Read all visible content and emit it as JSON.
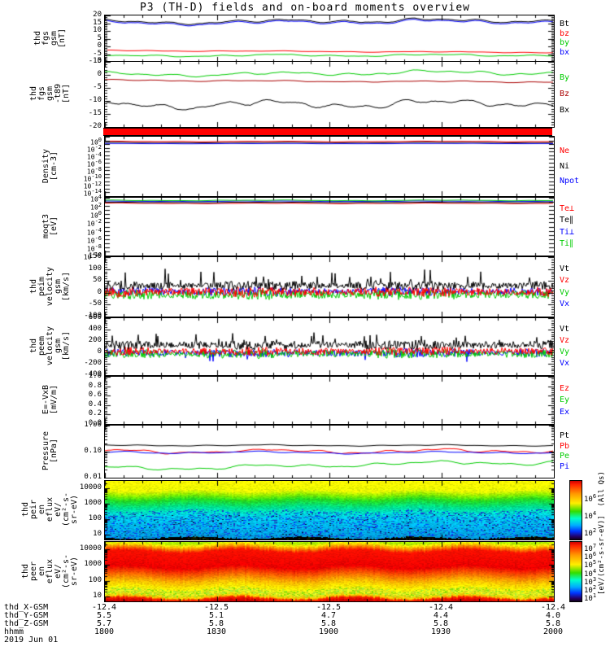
{
  "title": "P3 (TH-D) fields and on-board moments overview",
  "date_label": "2019 Jun 01",
  "bottom_rows": [
    {
      "label": "thd_X-GSM",
      "values": [
        "-12.4",
        "-12.5",
        "-12.5",
        "-12.4",
        "-12.4"
      ]
    },
    {
      "label": "thd_Y-GSM",
      "values": [
        "5.5",
        "5.1",
        "4.7",
        "4.4",
        "4.0"
      ]
    },
    {
      "label": "thd_Z-GSM",
      "values": [
        "5.7",
        "5.8",
        "5.8",
        "5.8",
        "5.8"
      ]
    },
    {
      "label": "hhmm",
      "values": [
        "1800",
        "1830",
        "1900",
        "1930",
        "2000"
      ]
    }
  ],
  "colorbar": {
    "unit_label": "[eV/(cm²-s-sr-eV)]  (All Qs)",
    "bars": [
      {
        "ticks": [
          {
            "label": "10^6",
            "frac": 0.28
          },
          {
            "label": "10^4",
            "frac": 0.57
          },
          {
            "label": "10^2",
            "frac": 0.86
          }
        ]
      },
      {
        "ticks": [
          {
            "label": "10^7",
            "frac": 0.08
          },
          {
            "label": "10^6",
            "frac": 0.22
          },
          {
            "label": "10^5",
            "frac": 0.36
          },
          {
            "label": "10^4",
            "frac": 0.5
          },
          {
            "label": "10^3",
            "frac": 0.64
          },
          {
            "label": "10^2",
            "frac": 0.78
          },
          {
            "label": "10^1",
            "frac": 0.92
          }
        ]
      }
    ]
  },
  "chart_data": [
    {
      "type": "line",
      "id": "fgs-gsm",
      "ylabel_lines": [
        "thd",
        "fgs",
        "gsm",
        "[nT]"
      ],
      "ylim": [
        -10,
        20
      ],
      "yticks": [
        {
          "v": 20,
          "label": "20"
        },
        {
          "v": 15,
          "label": "15"
        },
        {
          "v": 10,
          "label": "10"
        },
        {
          "v": 5,
          "label": "5"
        },
        {
          "v": 0,
          "label": "0"
        },
        {
          "v": -5,
          "label": "-5"
        },
        {
          "v": -10,
          "label": "-10"
        }
      ],
      "legend": [
        {
          "label": "Bt",
          "color": "#000000"
        },
        {
          "label": "bz",
          "color": "#ff0000"
        },
        {
          "label": "by",
          "color": "#00cc00"
        },
        {
          "label": "bx",
          "color": "#0000ff"
        }
      ],
      "series": [
        {
          "name": "Bt",
          "color": "#000000",
          "kind": "wave",
          "base": 16.3,
          "amp": 1.7,
          "lin": 0.8,
          "seed": 11
        },
        {
          "name": "bx",
          "color": "#0000ff",
          "kind": "follow",
          "ref": 0,
          "offset": -0.8
        },
        {
          "name": "bz",
          "color": "#ff0000",
          "kind": "wave",
          "base": -3.3,
          "amp": 0.4,
          "lin": -1.2,
          "seed": 12
        },
        {
          "name": "by",
          "color": "#00cc00",
          "kind": "wave",
          "base": -5.8,
          "amp": 0.9,
          "lin": 0.6,
          "seed": 13
        }
      ]
    },
    {
      "type": "line",
      "id": "fgs-gsm-t89",
      "ylabel_lines": [
        "thd",
        "fgs",
        "gsm",
        "-t89",
        "[nT]"
      ],
      "ylim": [
        -20,
        5
      ],
      "yticks": [
        {
          "v": 5,
          "label": "5"
        },
        {
          "v": 0,
          "label": "0"
        },
        {
          "v": -5,
          "label": "-5"
        },
        {
          "v": -10,
          "label": "-10"
        },
        {
          "v": -15,
          "label": "-15"
        },
        {
          "v": -20,
          "label": "-20"
        }
      ],
      "legend": [
        {
          "label": "By",
          "color": "#00cc00"
        },
        {
          "label": "Bz",
          "color": "#aa0000"
        },
        {
          "label": "Bx",
          "color": "#000000"
        }
      ],
      "series": [
        {
          "name": "By",
          "color": "#00cc00",
          "kind": "wave",
          "base": 0.6,
          "amp": 1.0,
          "lin": 0.8,
          "seed": 21
        },
        {
          "name": "Bz",
          "color": "#aa0000",
          "kind": "wave",
          "base": -2.4,
          "amp": 0.35,
          "lin": -0.7,
          "seed": 22
        },
        {
          "name": "Bx",
          "color": "#000000",
          "kind": "wave",
          "base": -11.0,
          "amp": 2.0,
          "lin": 1.2,
          "seed": 23
        }
      ]
    },
    {
      "type": "flag",
      "id": "flag-bar",
      "color": "#ff0000"
    },
    {
      "type": "line",
      "id": "density",
      "ylabel_lines": [
        "Density",
        "[cm-3]"
      ],
      "ylog": [
        1,
        -15
      ],
      "yticks": [
        {
          "v": 0,
          "label": "10^0"
        },
        {
          "v": -2,
          "label": "10^-2"
        },
        {
          "v": -4,
          "label": "10^-4"
        },
        {
          "v": -6,
          "label": "10^-6"
        },
        {
          "v": -8,
          "label": "10^-8"
        },
        {
          "v": -10,
          "label": "10^-10"
        },
        {
          "v": -12,
          "label": "10^-12"
        },
        {
          "v": -14,
          "label": "10^-14"
        }
      ],
      "legend": [
        {
          "label": "Ne",
          "color": "#ff0000"
        },
        {
          "label": "Ni",
          "color": "#000000"
        },
        {
          "label": "Npot",
          "color": "#0000ff"
        }
      ],
      "series": [
        {
          "name": "Npot",
          "color": "#0000ff",
          "kind": "flatlog",
          "base": -0.85,
          "amp": 0.05,
          "lin": 0,
          "seed": 33
        },
        {
          "name": "Ni",
          "color": "#000000",
          "kind": "flatlog",
          "base": -0.55,
          "amp": 0.08,
          "lin": 0,
          "seed": 32
        },
        {
          "name": "Ne",
          "color": "#ff0000",
          "kind": "flatlog",
          "base": -0.3,
          "amp": 0.1,
          "lin": 0,
          "seed": 31
        }
      ]
    },
    {
      "type": "line",
      "id": "moqt3",
      "ylabel_lines": [
        "moqt3",
        "[eV]"
      ],
      "ylog": [
        4,
        -10
      ],
      "yticks": [
        {
          "v": 4,
          "label": "10^4"
        },
        {
          "v": 2,
          "label": "10^2"
        },
        {
          "v": 0,
          "label": "10^0"
        },
        {
          "v": -2,
          "label": "10^-2"
        },
        {
          "v": -4,
          "label": "10^-4"
        },
        {
          "v": -6,
          "label": "10^-6"
        },
        {
          "v": -8,
          "label": "10^-8"
        },
        {
          "v": -10,
          "label": "10^-10"
        }
      ],
      "legend": [
        {
          "label": "Te⊥",
          "color": "#ff0000"
        },
        {
          "label": "Te∥",
          "color": "#000000"
        },
        {
          "label": "Ti⊥",
          "color": "#0000ff"
        },
        {
          "label": "Ti∥",
          "color": "#00cc00"
        }
      ],
      "series": [
        {
          "name": "Te⊥",
          "color": "#ff0000",
          "kind": "flatlog",
          "base": 2.65,
          "amp": 0.1,
          "lin": 0,
          "seed": 41
        },
        {
          "name": "Te∥",
          "color": "#000000",
          "kind": "flatlog",
          "base": 2.85,
          "amp": 0.08,
          "lin": 0,
          "seed": 42
        },
        {
          "name": "Ti⊥",
          "color": "#0000ff",
          "kind": "flatlog",
          "base": 3.15,
          "amp": 0.08,
          "lin": 0,
          "seed": 43
        },
        {
          "name": "Ti∥",
          "color": "#00cc00",
          "kind": "flatlog",
          "base": 3.35,
          "amp": 0.1,
          "lin": 0,
          "seed": 44
        }
      ]
    },
    {
      "type": "line",
      "id": "peim-velocity",
      "ylabel_lines": [
        "thd",
        "peim",
        "velocity",
        "gsm",
        "[km/s]"
      ],
      "ylim": [
        -100,
        150
      ],
      "yticks": [
        {
          "v": 150,
          "label": "150"
        },
        {
          "v": 100,
          "label": "100"
        },
        {
          "v": 50,
          "label": "50"
        },
        {
          "v": 0,
          "label": "0"
        },
        {
          "v": -50,
          "label": "-50"
        },
        {
          "v": -100,
          "label": "-100"
        }
      ],
      "legend": [
        {
          "label": "Vt",
          "color": "#000000"
        },
        {
          "label": "Vz",
          "color": "#ff0000"
        },
        {
          "label": "Vy",
          "color": "#00cc00"
        },
        {
          "label": "Vx",
          "color": "#0000ff"
        }
      ],
      "series": [
        {
          "name": "Vx",
          "color": "#0000ff",
          "kind": "noise",
          "base": 5,
          "amp": 14,
          "seed": 51
        },
        {
          "name": "Vy",
          "color": "#00cc00",
          "kind": "noise",
          "base": -8,
          "amp": 16,
          "seed": 52
        },
        {
          "name": "Vz",
          "color": "#ff0000",
          "kind": "noise",
          "base": 4,
          "amp": 16,
          "seed": 53
        },
        {
          "name": "Vt",
          "color": "#000000",
          "kind": "noise",
          "base": 30,
          "amp": 14,
          "spikes": {
            "prob": 0.04,
            "amp": 60
          },
          "seed": 54
        }
      ]
    },
    {
      "type": "line",
      "id": "peem-velocity",
      "ylabel_lines": [
        "thd",
        "peem",
        "velocity",
        "gsm",
        "[km/s]"
      ],
      "ylim": [
        -400,
        600
      ],
      "yticks": [
        {
          "v": 600,
          "label": "600"
        },
        {
          "v": 400,
          "label": "400"
        },
        {
          "v": 200,
          "label": "200"
        },
        {
          "v": 0,
          "label": "0"
        },
        {
          "v": -200,
          "label": "-200"
        },
        {
          "v": -400,
          "label": "-400"
        }
      ],
      "legend": [
        {
          "label": "Vt",
          "color": "#000000"
        },
        {
          "label": "Vz",
          "color": "#ff0000"
        },
        {
          "label": "Vy",
          "color": "#00cc00"
        },
        {
          "label": "Vx",
          "color": "#0000ff"
        }
      ],
      "series": [
        {
          "name": "Vx",
          "color": "#0000ff",
          "kind": "noise",
          "base": -10,
          "amp": 55,
          "spikes": {
            "prob": 0.02,
            "amp": -180
          },
          "seed": 61
        },
        {
          "name": "Vy",
          "color": "#00cc00",
          "kind": "noise",
          "base": -25,
          "amp": 60,
          "seed": 62
        },
        {
          "name": "Vz",
          "color": "#ff0000",
          "kind": "noise",
          "base": 20,
          "amp": 55,
          "seed": 63
        },
        {
          "name": "Vt",
          "color": "#000000",
          "kind": "noise",
          "base": 130,
          "amp": 60,
          "spikes": {
            "prob": 0.04,
            "amp": 200
          },
          "seed": 64
        }
      ]
    },
    {
      "type": "line",
      "id": "e-field",
      "ylabel_lines": [
        "E=-VxB",
        "[mV/m]"
      ],
      "ylim": [
        0,
        1
      ],
      "yticks": [
        {
          "v": 1,
          "label": "1.0"
        },
        {
          "v": 0.8,
          "label": "0.8"
        },
        {
          "v": 0.6,
          "label": "0.6"
        },
        {
          "v": 0.4,
          "label": "0.4"
        },
        {
          "v": 0.2,
          "label": "0.2"
        },
        {
          "v": 0,
          "label": "0.0"
        }
      ],
      "legend": [
        {
          "label": "Ez",
          "color": "#ff0000"
        },
        {
          "label": "Ey",
          "color": "#00cc00"
        },
        {
          "label": "Ex",
          "color": "#0000ff"
        }
      ],
      "series": []
    },
    {
      "type": "line",
      "id": "pressure",
      "ylabel_lines": [
        "Pressure",
        "[nPa]"
      ],
      "ylog": [
        0,
        -2
      ],
      "yticks": [
        {
          "v": 0,
          "label": "1.00"
        },
        {
          "v": -1,
          "label": "0.10"
        },
        {
          "v": -2,
          "label": "0.01"
        }
      ],
      "legend": [
        {
          "label": "Pt",
          "color": "#000000"
        },
        {
          "label": "Pb",
          "color": "#ff0000"
        },
        {
          "label": "Pe",
          "color": "#00cc00"
        },
        {
          "label": "Pi",
          "color": "#0000ff"
        }
      ],
      "series": [
        {
          "name": "Pt",
          "color": "#000000",
          "kind": "flatlog",
          "base": -0.76,
          "amp": 0.03,
          "lin": 0,
          "seed": 81
        },
        {
          "name": "Pb",
          "color": "#ff0000",
          "kind": "flatlog",
          "base": -0.98,
          "amp": 0.09,
          "lin": 0,
          "seed": 82
        },
        {
          "name": "Pi",
          "color": "#0000ff",
          "kind": "flatlog",
          "base": -1.03,
          "amp": 0.05,
          "lin": 0,
          "seed": 83
        },
        {
          "name": "Pe",
          "color": "#00cc00",
          "kind": "flatlog",
          "base": -1.52,
          "amp": 0.1,
          "lin": 0.25,
          "seed": 84
        }
      ]
    },
    {
      "type": "spectrogram",
      "id": "peir-eflux",
      "ylabel_lines": [
        "thd",
        "peir",
        "en",
        "eflux",
        "eV/",
        "(cm²-s-",
        "sr-eV)"
      ],
      "ylog": [
        4.45,
        0.7
      ],
      "yticks": [
        {
          "v": 4,
          "label": "10000"
        },
        {
          "v": 3,
          "label": "1000"
        },
        {
          "v": 2,
          "label": "100"
        },
        {
          "v": 1,
          "label": "10"
        }
      ],
      "legend": [],
      "seed": 91,
      "band_wiggle": 0.02,
      "black_bottom": true,
      "stops": [
        [
          0.0,
          "#ffff00"
        ],
        [
          0.16,
          "#eeff00"
        ],
        [
          0.24,
          "#88ee00"
        ],
        [
          0.32,
          "#22dd22"
        ],
        [
          0.44,
          "#00e08a"
        ],
        [
          0.54,
          "#00e0d0"
        ],
        [
          0.62,
          "#00ccee"
        ],
        [
          0.8,
          "#00b4ee"
        ],
        [
          0.93,
          "#00a0e0"
        ],
        [
          1.0,
          "#0088cc"
        ]
      ],
      "speckle": [
        {
          "z0": 0.5,
          "z1": 0.96,
          "prob": 0.2,
          "colors": [
            "#0044ff",
            "#0a68b4",
            "#2233cc"
          ]
        },
        {
          "z0": 0.55,
          "z1": 0.96,
          "prob": 0.02,
          "colors": [
            "#001133"
          ]
        }
      ]
    },
    {
      "type": "spectrogram",
      "id": "peer-eflux",
      "ylabel_lines": [
        "thd",
        "peer",
        "en",
        "eflux",
        "eV/",
        "(cm²-s-",
        "sr-eV)"
      ],
      "ylog": [
        4.45,
        0.7
      ],
      "yticks": [
        {
          "v": 4,
          "label": "10000"
        },
        {
          "v": 3,
          "label": "1000"
        },
        {
          "v": 2,
          "label": "100"
        },
        {
          "v": 1,
          "label": "10"
        }
      ],
      "legend": [],
      "seed": 101,
      "band_wiggle": 0.03,
      "black_bottom": false,
      "stops": [
        [
          0.0,
          "#aaee00"
        ],
        [
          0.04,
          "#ffee00"
        ],
        [
          0.09,
          "#ff8800"
        ],
        [
          0.15,
          "#ff1100"
        ],
        [
          0.42,
          "#ee0000"
        ],
        [
          0.55,
          "#ff6600"
        ],
        [
          0.66,
          "#ffbb00"
        ],
        [
          0.76,
          "#ffee00"
        ],
        [
          0.85,
          "#ddee22"
        ],
        [
          0.92,
          "#ffcc00"
        ],
        [
          0.95,
          "#ff2200"
        ],
        [
          1.0,
          "#cc0000"
        ]
      ],
      "speckle": [
        {
          "z0": 0.78,
          "z1": 0.9,
          "prob": 0.3,
          "colors": [
            "#88dd00",
            "#aaee33"
          ]
        }
      ]
    }
  ]
}
